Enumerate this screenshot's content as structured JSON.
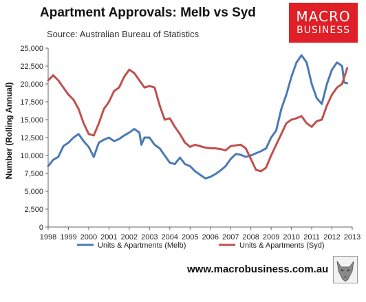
{
  "title": "Apartment Approvals: Melb vs Syd",
  "subtitle": "Source: Australian Bureau of Statistics",
  "logo": {
    "line1": "MACRO",
    "line2": "BUSINESS"
  },
  "footer_url": "www.macrobusiness.com.au",
  "colors": {
    "melb": "#4a7ab5",
    "syd": "#c0504d",
    "brand": "#e01f26"
  },
  "chart_data": {
    "type": "line",
    "title": "Apartment Approvals: Melb vs Syd",
    "ylabel": "Number (Rolling Annual)",
    "xlabel": "",
    "ylim": [
      0,
      25000
    ],
    "xlim": [
      1998,
      2013
    ],
    "y_ticks": [
      "0",
      "2,500",
      "5,000",
      "7,500",
      "10,000",
      "12,500",
      "15,000",
      "17,500",
      "20,000",
      "22,500",
      "25,000"
    ],
    "x_ticks": [
      "1998",
      "1999",
      "2000",
      "2001",
      "2002",
      "2003",
      "2004",
      "2005",
      "2006",
      "2007",
      "2008",
      "2009",
      "2010",
      "2011",
      "2012",
      "2013"
    ],
    "legend_position": "bottom",
    "grid": false,
    "series": [
      {
        "name": "Units & Apartments (Melb)",
        "color": "#4a7ab5",
        "x": [
          1998.0,
          1998.25,
          1998.5,
          1998.75,
          1999.0,
          1999.25,
          1999.5,
          1999.75,
          2000.0,
          2000.25,
          2000.5,
          2000.75,
          2001.0,
          2001.25,
          2001.5,
          2001.75,
          2002.0,
          2002.25,
          2002.5,
          2002.6,
          2002.75,
          2003.0,
          2003.25,
          2003.5,
          2003.75,
          2004.0,
          2004.25,
          2004.5,
          2004.75,
          2005.0,
          2005.25,
          2005.5,
          2005.75,
          2006.0,
          2006.25,
          2006.5,
          2006.75,
          2007.0,
          2007.25,
          2007.5,
          2007.75,
          2008.0,
          2008.25,
          2008.5,
          2008.75,
          2009.0,
          2009.25,
          2009.5,
          2009.75,
          2010.0,
          2010.25,
          2010.5,
          2010.75,
          2011.0,
          2011.25,
          2011.5,
          2011.75,
          2012.0,
          2012.25,
          2012.5,
          2012.6,
          2012.75
        ],
        "y": [
          8500,
          9400,
          9800,
          11300,
          11800,
          12500,
          13000,
          12000,
          11200,
          9800,
          11800,
          12200,
          12500,
          12000,
          12300,
          12800,
          13200,
          13700,
          13200,
          11500,
          12500,
          12500,
          11500,
          11000,
          10000,
          9000,
          8800,
          9700,
          8800,
          8500,
          7800,
          7300,
          6800,
          7000,
          7400,
          7900,
          8500,
          9500,
          10200,
          10100,
          9800,
          10000,
          10300,
          10600,
          11000,
          12500,
          13500,
          16500,
          18500,
          21000,
          23000,
          24000,
          23000,
          20000,
          18000,
          17200,
          20000,
          22000,
          23000,
          22500,
          20200,
          20100
        ]
      },
      {
        "name": "Units & Apartments (Syd)",
        "color": "#c0504d",
        "x": [
          1998.0,
          1998.25,
          1998.5,
          1998.75,
          1999.0,
          1999.25,
          1999.5,
          1999.75,
          2000.0,
          2000.25,
          2000.5,
          2000.75,
          2001.0,
          2001.25,
          2001.5,
          2001.75,
          2002.0,
          2002.25,
          2002.5,
          2002.75,
          2003.0,
          2003.25,
          2003.5,
          2003.75,
          2004.0,
          2004.25,
          2004.5,
          2004.75,
          2005.0,
          2005.25,
          2005.5,
          2005.75,
          2006.0,
          2006.25,
          2006.5,
          2006.75,
          2007.0,
          2007.25,
          2007.5,
          2007.75,
          2008.0,
          2008.25,
          2008.5,
          2008.75,
          2009.0,
          2009.25,
          2009.5,
          2009.75,
          2010.0,
          2010.25,
          2010.5,
          2010.75,
          2011.0,
          2011.25,
          2011.5,
          2011.75,
          2012.0,
          2012.25,
          2012.5,
          2012.75
        ],
        "y": [
          20500,
          21200,
          20500,
          19500,
          18500,
          17800,
          16500,
          14500,
          13000,
          12800,
          14500,
          16500,
          17500,
          19000,
          19500,
          21000,
          22000,
          21500,
          20500,
          19500,
          19700,
          19500,
          17000,
          15000,
          15200,
          14000,
          13000,
          11800,
          11200,
          11500,
          11300,
          11100,
          11000,
          11000,
          10900,
          10700,
          11300,
          11400,
          11500,
          11000,
          9500,
          8000,
          7800,
          8300,
          10000,
          11500,
          13000,
          14500,
          15000,
          15200,
          15500,
          14500,
          14000,
          14800,
          15000,
          17000,
          18500,
          19500,
          20000,
          22200
        ]
      }
    ]
  }
}
